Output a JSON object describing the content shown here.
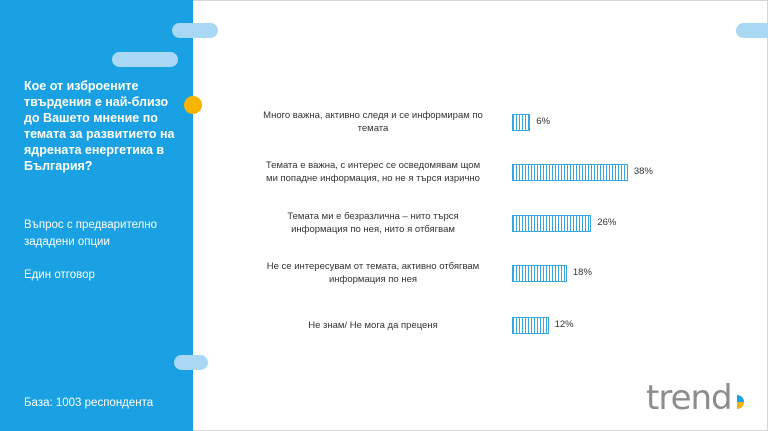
{
  "sidebar": {
    "question": "Кое от изброените твърдения е най-близо до Вашето мнение по темата за развитието на ядрената енергетика в България?",
    "question_type": "Въпрос с предварително зададени опции",
    "answer_type": "Един отговор",
    "base": "База:  1003 респондента"
  },
  "logo": {
    "text": "trend"
  },
  "colors": {
    "sidebar": "#1aa1e3",
    "bar": "#3aa6e0",
    "accent_dot": "#f7b500",
    "pill": "#a9d8f4"
  },
  "chart_data": {
    "type": "bar",
    "orientation": "horizontal",
    "categories": [
      "Много важна, активно следя и се информирам по темата",
      "Темата е важна, с интерес се осведомявам щом ми попадне информация, но не я търся изрично",
      "Темата ми е безразлична – нито търся информация по нея, нито я отбягвам",
      "Не се интересувам от темата, активно отбягвам информация по нея",
      "Не знам/ Не мога да преценя"
    ],
    "values": [
      6,
      38,
      26,
      18,
      12
    ],
    "value_labels": [
      "6%",
      "38%",
      "26%",
      "18%",
      "12%"
    ],
    "unit": "%",
    "title": "",
    "xlabel": "",
    "ylabel": "",
    "grid": false
  }
}
